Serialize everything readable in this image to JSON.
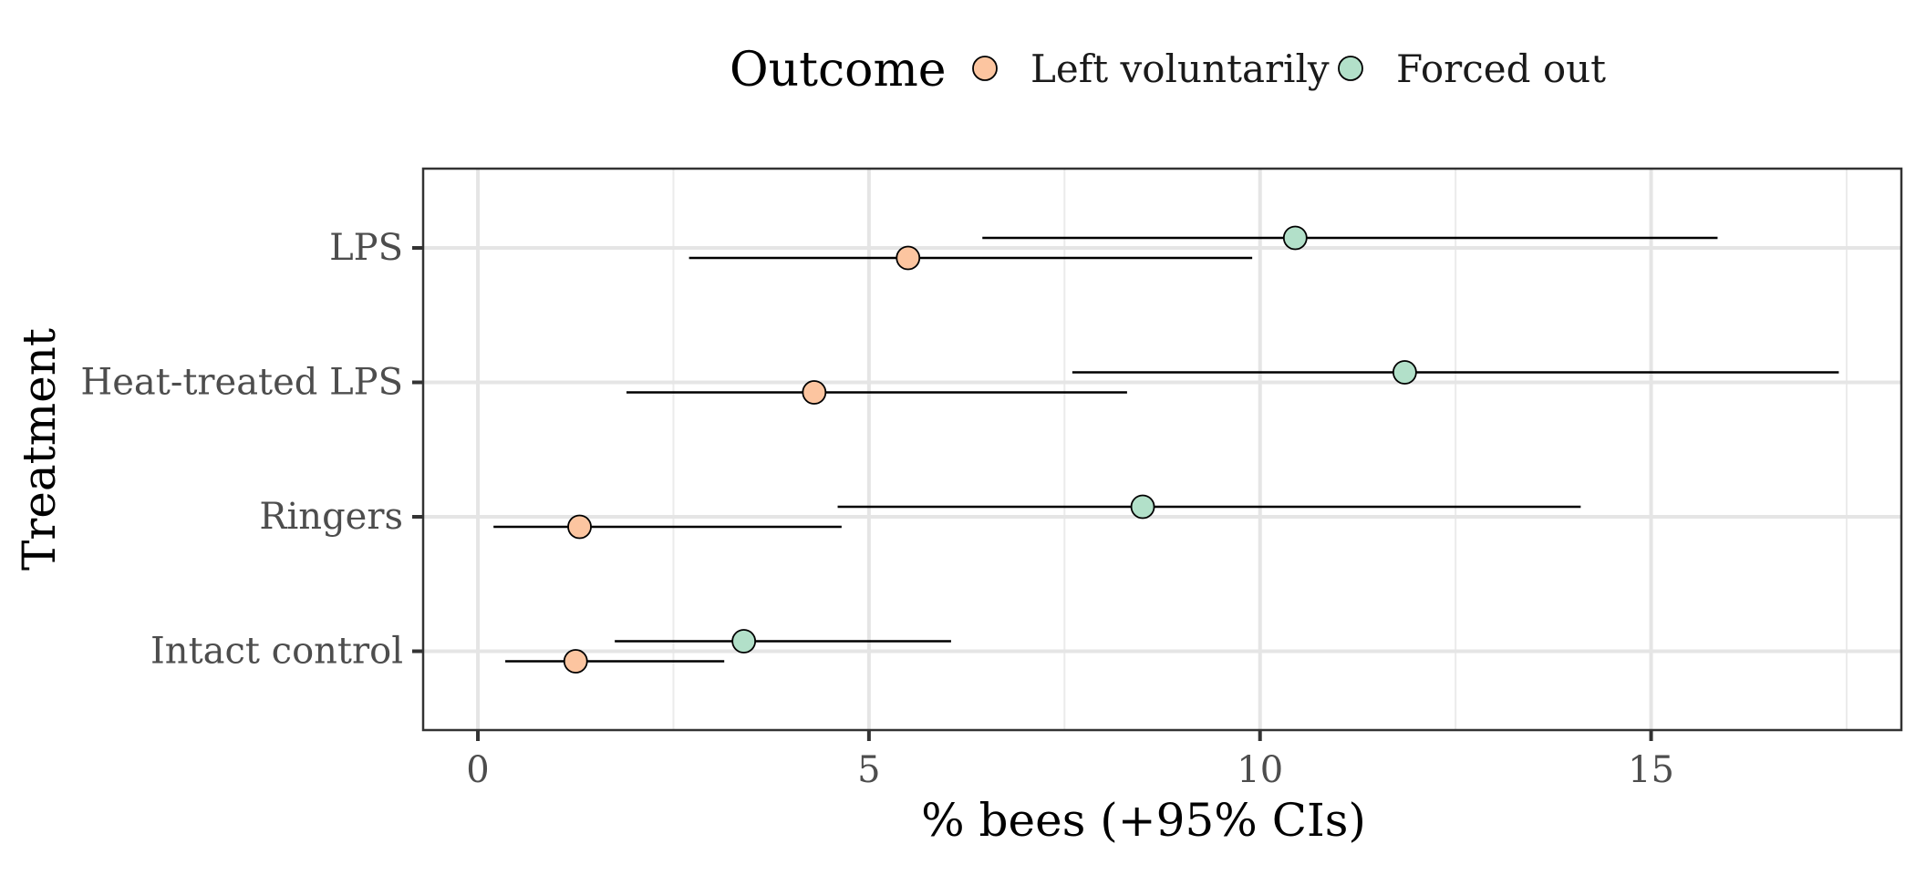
{
  "chart_data": {
    "type": "dot-errorbar",
    "title": "",
    "xlabel": "% bees (+95% CIs)",
    "ylabel": "Treatment",
    "xlim": [
      -0.7,
      18.2
    ],
    "x_ticks": [
      0,
      5,
      10,
      15
    ],
    "x_tick_labels": [
      "0",
      "5",
      "10",
      "15"
    ],
    "categories": [
      "LPS",
      "Heat-treated LPS",
      "Ringers",
      "Intact control"
    ],
    "legend": {
      "title": "Outcome",
      "position": "top",
      "entries": [
        {
          "label": "Left voluntarily",
          "color": "#fcc5a0"
        },
        {
          "label": "Forced out",
          "color": "#b2e0c9"
        }
      ]
    },
    "series": [
      {
        "name": "Left voluntarily",
        "color": "#fcc5a0",
        "values": [
          5.5,
          4.3,
          1.3,
          1.25
        ],
        "lower": [
          2.7,
          1.9,
          0.2,
          0.35
        ],
        "upper": [
          9.9,
          8.3,
          4.65,
          3.15
        ]
      },
      {
        "name": "Forced out",
        "color": "#b2e0c9",
        "values": [
          10.45,
          11.85,
          8.5,
          3.4
        ],
        "lower": [
          6.45,
          7.6,
          4.6,
          1.75
        ],
        "upper": [
          15.85,
          17.4,
          14.1,
          6.05
        ]
      }
    ],
    "grid": true
  }
}
